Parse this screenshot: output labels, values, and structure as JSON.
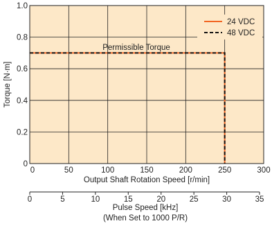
{
  "chart_data": {
    "type": "line",
    "ylabel": "Torque [N·m]",
    "xlabel": "Output Shaft Rotation Speed [r/min]",
    "xlim": [
      0,
      300
    ],
    "ylim": [
      0,
      1.0
    ],
    "x_ticks": [
      "0",
      "50",
      "100",
      "150",
      "200",
      "250",
      "300"
    ],
    "y_ticks": [
      "0",
      "0.2",
      "0.4",
      "0.6",
      "0.8",
      "1.0"
    ],
    "grid": true,
    "legend_position": "top-right",
    "annotation": "Permissible Torque",
    "series": [
      {
        "name": "24 VDC",
        "color": "#f26522",
        "style": "solid",
        "x": [
          0,
          250,
          250
        ],
        "y": [
          0.7,
          0.7,
          0
        ]
      },
      {
        "name": "48 VDC",
        "color": "#111111",
        "style": "dashed",
        "x": [
          0,
          250,
          250
        ],
        "y": [
          0.7,
          0.7,
          0
        ]
      }
    ],
    "secondary_axis": {
      "label": "Pulse Speed [kHz]",
      "sublabel": "(When Set to 1000 P/R)",
      "xlim": [
        0,
        35
      ],
      "ticks": [
        "0",
        "5",
        "10",
        "15",
        "20",
        "25",
        "30",
        "35"
      ]
    }
  }
}
